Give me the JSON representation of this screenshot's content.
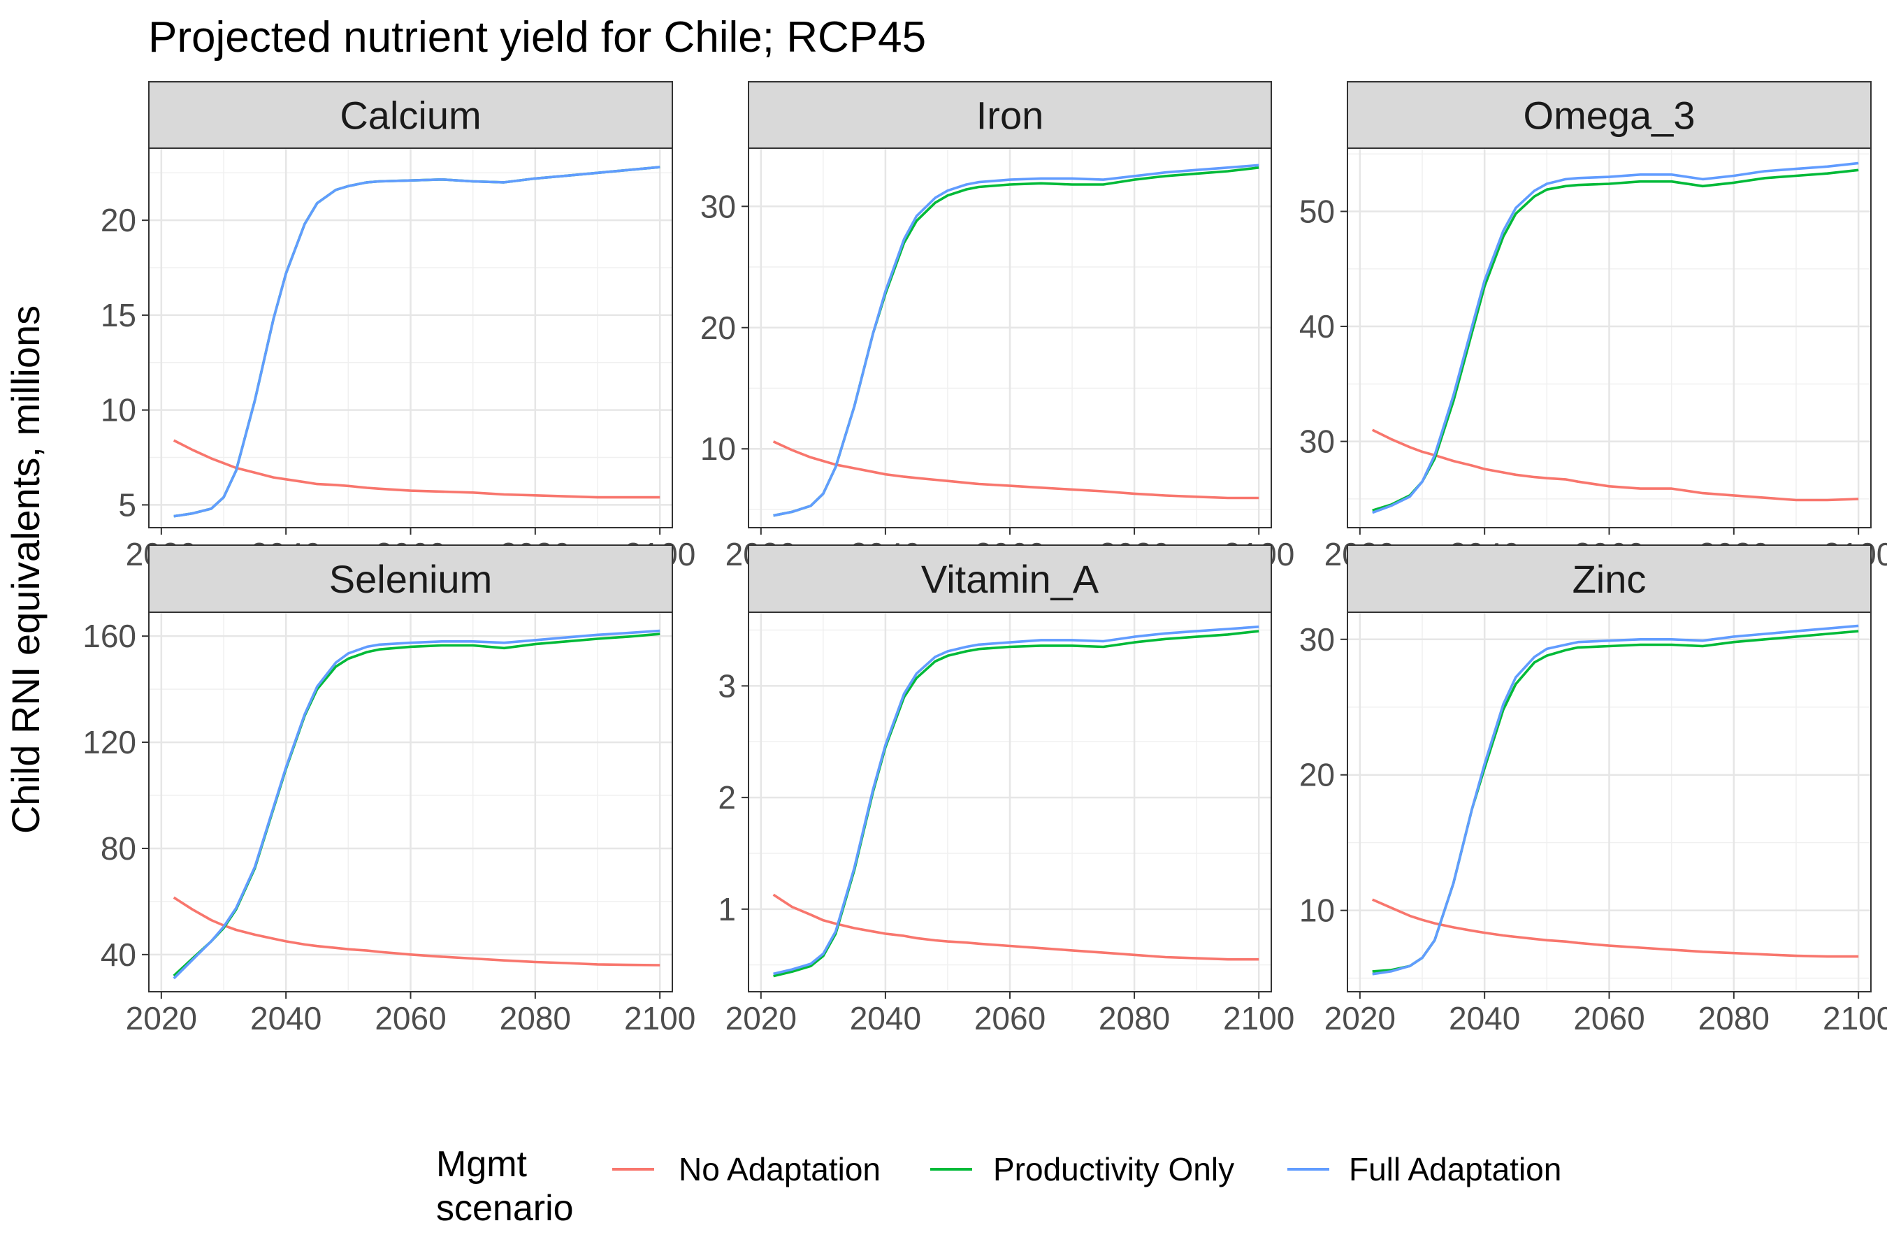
{
  "title": "Projected nutrient yield for Chile; RCP45",
  "ylabel": "Child RNI equivalents, millions",
  "legend": {
    "title_line1": "Mgmt",
    "title_line2": "scenario",
    "items": [
      {
        "label": "No Adaptation",
        "color": "#F8766D"
      },
      {
        "label": "Productivity Only",
        "color": "#00BA38"
      },
      {
        "label": "Full Adaptation",
        "color": "#619CFF"
      }
    ]
  },
  "chart_data": [
    {
      "type": "line",
      "facet": "Calcium",
      "xlim": [
        2018,
        2102
      ],
      "ylim": [
        3.8,
        23.8
      ],
      "x_ticks": [
        2020,
        2040,
        2060,
        2080,
        2100
      ],
      "y_ticks": [
        5,
        10,
        15,
        20
      ],
      "x": [
        2022,
        2025,
        2028,
        2030,
        2032,
        2035,
        2038,
        2040,
        2043,
        2045,
        2048,
        2050,
        2053,
        2055,
        2060,
        2065,
        2070,
        2075,
        2080,
        2085,
        2090,
        2095,
        2100
      ],
      "series": [
        {
          "name": "No Adaptation",
          "color": "#F8766D",
          "values": [
            8.4,
            7.9,
            7.45,
            7.2,
            6.95,
            6.7,
            6.45,
            6.35,
            6.2,
            6.1,
            6.05,
            6.0,
            5.9,
            5.85,
            5.75,
            5.7,
            5.65,
            5.55,
            5.5,
            5.45,
            5.4,
            5.4,
            5.4
          ]
        },
        {
          "name": "Productivity Only",
          "color": "#00BA38",
          "values": [
            4.4,
            4.55,
            4.8,
            5.4,
            6.8,
            10.5,
            14.8,
            17.2,
            19.8,
            20.9,
            21.6,
            21.8,
            22.0,
            22.05,
            22.1,
            22.15,
            22.05,
            22.0,
            22.2,
            22.35,
            22.5,
            22.65,
            22.8
          ]
        },
        {
          "name": "Full Adaptation",
          "color": "#619CFF",
          "values": [
            4.4,
            4.55,
            4.8,
            5.4,
            6.8,
            10.5,
            14.8,
            17.2,
            19.8,
            20.9,
            21.6,
            21.8,
            22.0,
            22.05,
            22.1,
            22.15,
            22.05,
            22.0,
            22.2,
            22.35,
            22.5,
            22.65,
            22.8
          ]
        }
      ]
    },
    {
      "type": "line",
      "facet": "Iron",
      "xlim": [
        2018,
        2102
      ],
      "ylim": [
        3.5,
        34.8
      ],
      "x_ticks": [
        2020,
        2040,
        2060,
        2080,
        2100
      ],
      "y_ticks": [
        10,
        20,
        30
      ],
      "x": [
        2022,
        2025,
        2028,
        2030,
        2032,
        2035,
        2038,
        2040,
        2043,
        2045,
        2048,
        2050,
        2053,
        2055,
        2060,
        2065,
        2070,
        2075,
        2080,
        2085,
        2090,
        2095,
        2100
      ],
      "series": [
        {
          "name": "No Adaptation",
          "color": "#F8766D",
          "values": [
            10.6,
            9.9,
            9.3,
            9.0,
            8.7,
            8.4,
            8.1,
            7.9,
            7.7,
            7.6,
            7.45,
            7.35,
            7.2,
            7.1,
            6.95,
            6.8,
            6.65,
            6.5,
            6.3,
            6.15,
            6.05,
            5.95,
            5.95
          ]
        },
        {
          "name": "Productivity Only",
          "color": "#00BA38",
          "values": [
            4.5,
            4.8,
            5.3,
            6.3,
            8.5,
            13.5,
            19.5,
            22.8,
            27.0,
            28.8,
            30.3,
            30.9,
            31.4,
            31.6,
            31.8,
            31.9,
            31.8,
            31.8,
            32.2,
            32.5,
            32.7,
            32.9,
            33.2
          ]
        },
        {
          "name": "Full Adaptation",
          "color": "#619CFF",
          "values": [
            4.5,
            4.8,
            5.3,
            6.3,
            8.5,
            13.5,
            19.5,
            23.0,
            27.3,
            29.2,
            30.7,
            31.3,
            31.8,
            32.0,
            32.2,
            32.3,
            32.3,
            32.2,
            32.5,
            32.8,
            33.0,
            33.2,
            33.4
          ]
        }
      ]
    },
    {
      "type": "line",
      "facet": "Omega_3",
      "xlim": [
        2018,
        2102
      ],
      "ylim": [
        22.5,
        55.5
      ],
      "x_ticks": [
        2020,
        2040,
        2060,
        2080,
        2100
      ],
      "y_ticks": [
        30,
        40,
        50
      ],
      "x": [
        2022,
        2025,
        2028,
        2030,
        2032,
        2035,
        2038,
        2040,
        2043,
        2045,
        2048,
        2050,
        2053,
        2055,
        2060,
        2065,
        2070,
        2075,
        2080,
        2085,
        2090,
        2095,
        2100
      ],
      "series": [
        {
          "name": "No Adaptation",
          "color": "#F8766D",
          "values": [
            31.0,
            30.2,
            29.5,
            29.1,
            28.8,
            28.3,
            27.9,
            27.6,
            27.3,
            27.1,
            26.9,
            26.8,
            26.7,
            26.5,
            26.1,
            25.9,
            25.9,
            25.5,
            25.3,
            25.1,
            24.9,
            24.9,
            25.0
          ]
        },
        {
          "name": "Productivity Only",
          "color": "#00BA38",
          "values": [
            24.0,
            24.5,
            25.3,
            26.5,
            28.5,
            33.5,
            39.5,
            43.5,
            47.8,
            49.8,
            51.3,
            51.9,
            52.2,
            52.3,
            52.4,
            52.6,
            52.6,
            52.2,
            52.5,
            52.9,
            53.1,
            53.3,
            53.6
          ]
        },
        {
          "name": "Full Adaptation",
          "color": "#619CFF",
          "values": [
            23.8,
            24.4,
            25.2,
            26.5,
            28.8,
            34.0,
            40.0,
            44.0,
            48.3,
            50.3,
            51.8,
            52.4,
            52.8,
            52.9,
            53.0,
            53.2,
            53.2,
            52.8,
            53.1,
            53.5,
            53.7,
            53.9,
            54.2
          ]
        }
      ]
    },
    {
      "type": "line",
      "facet": "Selenium",
      "xlim": [
        2018,
        2102
      ],
      "ylim": [
        26,
        169
      ],
      "x_ticks": [
        2020,
        2040,
        2060,
        2080,
        2100
      ],
      "y_ticks": [
        40,
        80,
        120,
        160
      ],
      "x": [
        2022,
        2025,
        2028,
        2030,
        2032,
        2035,
        2038,
        2040,
        2043,
        2045,
        2048,
        2050,
        2053,
        2055,
        2060,
        2065,
        2070,
        2075,
        2080,
        2085,
        2090,
        2095,
        2100
      ],
      "series": [
        {
          "name": "No Adaptation",
          "color": "#F8766D",
          "values": [
            61.5,
            57.0,
            53.0,
            51.0,
            49.3,
            47.5,
            46.0,
            45.0,
            43.8,
            43.2,
            42.5,
            42.0,
            41.5,
            41.0,
            40.0,
            39.2,
            38.5,
            37.8,
            37.2,
            36.8,
            36.3,
            36.1,
            36.0
          ]
        },
        {
          "name": "Productivity Only",
          "color": "#00BA38",
          "values": [
            32.0,
            38.5,
            45.0,
            50.0,
            57.0,
            72.5,
            95.0,
            110.0,
            130.0,
            140.0,
            148.5,
            151.5,
            154.0,
            155.0,
            156.0,
            156.5,
            156.5,
            155.5,
            157.0,
            158.0,
            159.0,
            159.8,
            160.8
          ]
        },
        {
          "name": "Full Adaptation",
          "color": "#619CFF",
          "values": [
            31.0,
            38.0,
            45.0,
            50.5,
            57.5,
            73.0,
            95.5,
            110.5,
            130.5,
            141.0,
            150.0,
            153.5,
            156.0,
            156.8,
            157.5,
            158.0,
            158.0,
            157.5,
            158.5,
            159.5,
            160.5,
            161.2,
            162.0
          ]
        }
      ]
    },
    {
      "type": "line",
      "facet": "Vitamin_A",
      "xlim": [
        2018,
        2102
      ],
      "ylim": [
        0.26,
        3.66
      ],
      "x_ticks": [
        2020,
        2040,
        2060,
        2080,
        2100
      ],
      "y_ticks": [
        1,
        2,
        3
      ],
      "x": [
        2022,
        2025,
        2028,
        2030,
        2032,
        2035,
        2038,
        2040,
        2043,
        2045,
        2048,
        2050,
        2053,
        2055,
        2060,
        2065,
        2070,
        2075,
        2080,
        2085,
        2090,
        2095,
        2100
      ],
      "series": [
        {
          "name": "No Adaptation",
          "color": "#F8766D",
          "values": [
            1.13,
            1.02,
            0.95,
            0.9,
            0.87,
            0.83,
            0.8,
            0.78,
            0.76,
            0.74,
            0.72,
            0.71,
            0.7,
            0.69,
            0.67,
            0.65,
            0.63,
            0.61,
            0.59,
            0.57,
            0.56,
            0.55,
            0.55
          ]
        },
        {
          "name": "Productivity Only",
          "color": "#00BA38",
          "values": [
            0.4,
            0.44,
            0.49,
            0.58,
            0.78,
            1.35,
            2.05,
            2.45,
            2.9,
            3.07,
            3.22,
            3.27,
            3.31,
            3.33,
            3.35,
            3.36,
            3.36,
            3.35,
            3.39,
            3.42,
            3.44,
            3.46,
            3.49
          ]
        },
        {
          "name": "Full Adaptation",
          "color": "#619CFF",
          "values": [
            0.42,
            0.46,
            0.51,
            0.6,
            0.8,
            1.37,
            2.07,
            2.47,
            2.93,
            3.11,
            3.26,
            3.31,
            3.35,
            3.37,
            3.39,
            3.41,
            3.41,
            3.4,
            3.44,
            3.47,
            3.49,
            3.51,
            3.53
          ]
        }
      ]
    },
    {
      "type": "line",
      "facet": "Zinc",
      "xlim": [
        2018,
        2102
      ],
      "ylim": [
        4.0,
        32.0
      ],
      "x_ticks": [
        2020,
        2040,
        2060,
        2080,
        2100
      ],
      "y_ticks": [
        10,
        20,
        30
      ],
      "x": [
        2022,
        2025,
        2028,
        2030,
        2032,
        2035,
        2038,
        2040,
        2043,
        2045,
        2048,
        2050,
        2053,
        2055,
        2060,
        2065,
        2070,
        2075,
        2080,
        2085,
        2090,
        2095,
        2100
      ],
      "series": [
        {
          "name": "No Adaptation",
          "color": "#F8766D",
          "values": [
            10.8,
            10.2,
            9.6,
            9.3,
            9.05,
            8.75,
            8.5,
            8.35,
            8.15,
            8.05,
            7.9,
            7.8,
            7.7,
            7.6,
            7.4,
            7.25,
            7.1,
            6.95,
            6.85,
            6.75,
            6.65,
            6.6,
            6.6
          ]
        },
        {
          "name": "Productivity Only",
          "color": "#00BA38",
          "values": [
            5.5,
            5.6,
            5.9,
            6.5,
            7.8,
            12.0,
            17.5,
            20.5,
            24.8,
            26.7,
            28.3,
            28.8,
            29.2,
            29.4,
            29.5,
            29.6,
            29.6,
            29.5,
            29.8,
            30.0,
            30.2,
            30.4,
            30.6
          ]
        },
        {
          "name": "Full Adaptation",
          "color": "#619CFF",
          "values": [
            5.3,
            5.5,
            5.9,
            6.5,
            7.8,
            12.0,
            17.5,
            20.8,
            25.2,
            27.2,
            28.7,
            29.3,
            29.6,
            29.8,
            29.9,
            30.0,
            30.0,
            29.9,
            30.2,
            30.4,
            30.6,
            30.8,
            31.0
          ]
        }
      ]
    }
  ]
}
